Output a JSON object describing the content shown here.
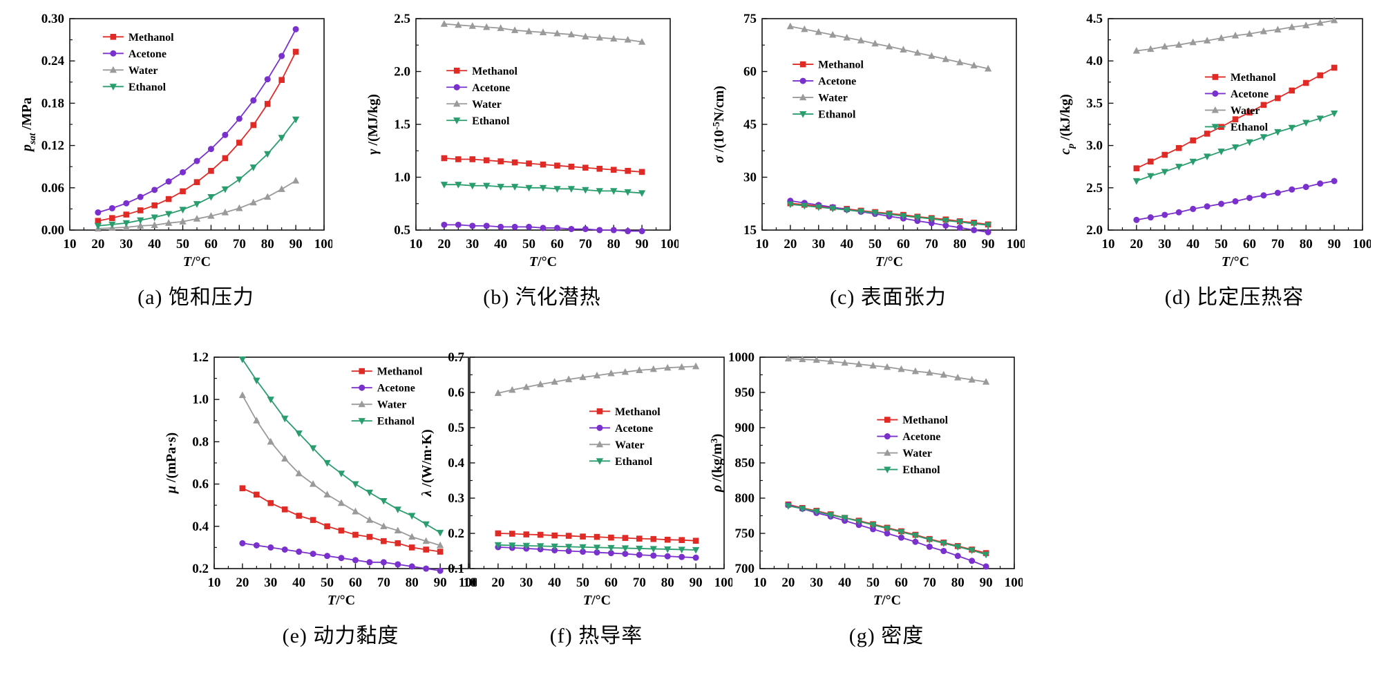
{
  "figure_title": "",
  "xlabel": "T/°C",
  "xlabel_parts": [
    {
      "t": "T",
      "i": 1
    },
    {
      "t": "/°C"
    }
  ],
  "legend_labels": [
    "Methanol",
    "Acetone",
    "Water",
    "Ethanol"
  ],
  "colors": {
    "methanol": "#df2a26",
    "acetone": "#7a30cc",
    "water": "#9a9a9a",
    "ethanol": "#2a9d6e",
    "axis": "#111111"
  },
  "chart_data": [
    {
      "id": "a",
      "type": "line",
      "caption": "(a) 饱和压力",
      "ylabel": "p_sat/MPa",
      "ylabel_parts": [
        {
          "t": "p",
          "i": 1
        },
        {
          "t": "sat",
          "i": 1,
          "sub": 1
        },
        {
          "t": " /MPa"
        }
      ],
      "xlim": [
        10,
        100
      ],
      "xticks": [
        10,
        20,
        30,
        40,
        50,
        60,
        70,
        80,
        90,
        100
      ],
      "ylim": [
        0.0,
        0.3
      ],
      "yticks": [
        0.0,
        0.06,
        0.12,
        0.18,
        0.24,
        0.3
      ],
      "ytick_decimals": 2,
      "x": [
        20,
        25,
        30,
        35,
        40,
        45,
        50,
        55,
        60,
        65,
        70,
        75,
        80,
        85,
        90
      ],
      "legend": {
        "fx": 0.13,
        "fy": 0.05
      },
      "series": [
        {
          "name": "Methanol",
          "color": "#df2a26",
          "marker": "square",
          "values": [
            0.013,
            0.017,
            0.022,
            0.028,
            0.035,
            0.044,
            0.055,
            0.068,
            0.084,
            0.102,
            0.124,
            0.149,
            0.179,
            0.213,
            0.253
          ]
        },
        {
          "name": "Acetone",
          "color": "#7a30cc",
          "marker": "circle",
          "values": [
            0.025,
            0.031,
            0.038,
            0.047,
            0.057,
            0.069,
            0.082,
            0.098,
            0.115,
            0.135,
            0.158,
            0.184,
            0.214,
            0.247,
            0.285
          ]
        },
        {
          "name": "Water",
          "color": "#9a9a9a",
          "marker": "triangle-up",
          "values": [
            0.002,
            0.003,
            0.004,
            0.006,
            0.007,
            0.01,
            0.012,
            0.016,
            0.02,
            0.025,
            0.031,
            0.039,
            0.047,
            0.058,
            0.07
          ]
        },
        {
          "name": "Ethanol",
          "color": "#2a9d6e",
          "marker": "triangle-down",
          "values": [
            0.006,
            0.008,
            0.01,
            0.014,
            0.018,
            0.023,
            0.029,
            0.037,
            0.047,
            0.058,
            0.072,
            0.089,
            0.108,
            0.131,
            0.157
          ]
        }
      ]
    },
    {
      "id": "b",
      "type": "line",
      "caption": "(b) 汽化潜热",
      "ylabel": "γ/(MJ/kg)",
      "ylabel_parts": [
        {
          "t": "γ",
          "i": 1
        },
        {
          "t": " /(MJ/kg)"
        }
      ],
      "xlim": [
        10,
        100
      ],
      "xticks": [
        10,
        20,
        30,
        40,
        50,
        60,
        70,
        80,
        90,
        100
      ],
      "ylim": [
        0.5,
        2.5
      ],
      "yticks": [
        0.5,
        1.0,
        1.5,
        2.0,
        2.5
      ],
      "ytick_decimals": 1,
      "x": [
        20,
        25,
        30,
        35,
        40,
        45,
        50,
        55,
        60,
        65,
        70,
        75,
        80,
        85,
        90
      ],
      "legend": {
        "fx": 0.12,
        "fy": 0.21
      },
      "series": [
        {
          "name": "Methanol",
          "color": "#df2a26",
          "marker": "square",
          "values": [
            1.18,
            1.17,
            1.17,
            1.16,
            1.15,
            1.14,
            1.13,
            1.12,
            1.11,
            1.1,
            1.09,
            1.08,
            1.07,
            1.06,
            1.05
          ]
        },
        {
          "name": "Acetone",
          "color": "#7a30cc",
          "marker": "circle",
          "values": [
            0.55,
            0.55,
            0.54,
            0.54,
            0.53,
            0.53,
            0.53,
            0.52,
            0.52,
            0.51,
            0.51,
            0.5,
            0.5,
            0.49,
            0.49
          ]
        },
        {
          "name": "Water",
          "color": "#9a9a9a",
          "marker": "triangle-up",
          "values": [
            2.45,
            2.44,
            2.43,
            2.42,
            2.41,
            2.39,
            2.38,
            2.37,
            2.36,
            2.35,
            2.33,
            2.32,
            2.31,
            2.3,
            2.28
          ]
        },
        {
          "name": "Ethanol",
          "color": "#2a9d6e",
          "marker": "triangle-down",
          "values": [
            0.93,
            0.93,
            0.92,
            0.92,
            0.91,
            0.91,
            0.9,
            0.9,
            0.89,
            0.89,
            0.88,
            0.87,
            0.87,
            0.86,
            0.85
          ]
        }
      ]
    },
    {
      "id": "c",
      "type": "line",
      "caption": "(c) 表面张力",
      "ylabel": "σ/(10⁻⁵N/cm)",
      "ylabel_parts": [
        {
          "t": "σ",
          "i": 1
        },
        {
          "t": " /(10"
        },
        {
          "t": "-5",
          "sup": 1
        },
        {
          "t": "N/cm)"
        }
      ],
      "xlim": [
        10,
        100
      ],
      "xticks": [
        10,
        20,
        30,
        40,
        50,
        60,
        70,
        80,
        90,
        100
      ],
      "ylim": [
        15,
        75
      ],
      "yticks": [
        15,
        30,
        45,
        60,
        75
      ],
      "ytick_decimals": 0,
      "x": [
        20,
        25,
        30,
        35,
        40,
        45,
        50,
        55,
        60,
        65,
        70,
        75,
        80,
        85,
        90
      ],
      "legend": {
        "fx": 0.12,
        "fy": 0.18
      },
      "series": [
        {
          "name": "Methanol",
          "color": "#df2a26",
          "marker": "square",
          "values": [
            22.6,
            22.2,
            21.8,
            21.4,
            21.0,
            20.5,
            20.1,
            19.7,
            19.3,
            18.8,
            18.4,
            18.0,
            17.5,
            17.1,
            16.6
          ]
        },
        {
          "name": "Acetone",
          "color": "#7a30cc",
          "marker": "circle",
          "values": [
            23.3,
            22.7,
            22.1,
            21.5,
            20.8,
            20.2,
            19.6,
            18.9,
            18.3,
            17.6,
            17.0,
            16.3,
            15.7,
            15.0,
            14.4
          ]
        },
        {
          "name": "Water",
          "color": "#9a9a9a",
          "marker": "triangle-up",
          "values": [
            72.8,
            72.0,
            71.2,
            70.4,
            69.6,
            68.8,
            67.9,
            67.1,
            66.2,
            65.3,
            64.4,
            63.5,
            62.6,
            61.7,
            60.8
          ]
        },
        {
          "name": "Ethanol",
          "color": "#2a9d6e",
          "marker": "triangle-down",
          "values": [
            22.3,
            21.9,
            21.5,
            21.1,
            20.7,
            20.3,
            19.9,
            19.5,
            19.0,
            18.6,
            18.2,
            17.7,
            17.3,
            16.8,
            16.4
          ]
        }
      ]
    },
    {
      "id": "d",
      "type": "line",
      "caption": "(d) 比定压热容",
      "ylabel": "c_p/(kJ/kg)",
      "ylabel_parts": [
        {
          "t": "c",
          "i": 1
        },
        {
          "t": "p",
          "i": 1,
          "sub": 1
        },
        {
          "t": " /(kJ/kg)"
        }
      ],
      "xlim": [
        10,
        100
      ],
      "xticks": [
        10,
        20,
        30,
        40,
        50,
        60,
        70,
        80,
        90,
        100
      ],
      "ylim": [
        2.0,
        4.5
      ],
      "yticks": [
        2.0,
        2.5,
        3.0,
        3.5,
        4.0,
        4.5
      ],
      "ytick_decimals": 1,
      "x": [
        20,
        25,
        30,
        35,
        40,
        45,
        50,
        55,
        60,
        65,
        70,
        75,
        80,
        85,
        90
      ],
      "legend": {
        "fx": 0.38,
        "fy": 0.24
      },
      "series": [
        {
          "name": "Methanol",
          "color": "#df2a26",
          "marker": "square",
          "values": [
            2.73,
            2.81,
            2.89,
            2.97,
            3.06,
            3.14,
            3.22,
            3.31,
            3.39,
            3.48,
            3.56,
            3.65,
            3.74,
            3.83,
            3.92
          ]
        },
        {
          "name": "Acetone",
          "color": "#7a30cc",
          "marker": "circle",
          "values": [
            2.12,
            2.15,
            2.18,
            2.21,
            2.25,
            2.28,
            2.31,
            2.34,
            2.38,
            2.41,
            2.44,
            2.48,
            2.51,
            2.55,
            2.58
          ]
        },
        {
          "name": "Water",
          "color": "#9a9a9a",
          "marker": "triangle-up",
          "values": [
            4.12,
            4.14,
            4.17,
            4.19,
            4.22,
            4.24,
            4.27,
            4.3,
            4.32,
            4.35,
            4.37,
            4.4,
            4.42,
            4.45,
            4.48
          ]
        },
        {
          "name": "Ethanol",
          "color": "#2a9d6e",
          "marker": "triangle-down",
          "values": [
            2.58,
            2.64,
            2.69,
            2.75,
            2.81,
            2.87,
            2.93,
            2.98,
            3.04,
            3.1,
            3.16,
            3.21,
            3.27,
            3.32,
            3.38
          ]
        }
      ]
    },
    {
      "id": "e",
      "type": "line",
      "caption": "(e) 动力黏度",
      "ylabel": "μ/(mPa·s)",
      "ylabel_parts": [
        {
          "t": "μ",
          "i": 1
        },
        {
          "t": " /(mPa·s)"
        }
      ],
      "xlim": [
        10,
        100
      ],
      "xticks": [
        10,
        20,
        30,
        40,
        50,
        60,
        70,
        80,
        90,
        100
      ],
      "ylim": [
        0.2,
        1.2
      ],
      "yticks": [
        0.2,
        0.4,
        0.6,
        0.8,
        1.0,
        1.2
      ],
      "ytick_decimals": 1,
      "x": [
        20,
        25,
        30,
        35,
        40,
        45,
        50,
        55,
        60,
        65,
        70,
        75,
        80,
        85,
        90
      ],
      "legend": {
        "fx": 0.54,
        "fy": 0.03
      },
      "series": [
        {
          "name": "Methanol",
          "color": "#df2a26",
          "marker": "square",
          "values": [
            0.58,
            0.55,
            0.51,
            0.48,
            0.45,
            0.43,
            0.4,
            0.38,
            0.36,
            0.35,
            0.33,
            0.32,
            0.3,
            0.29,
            0.28
          ]
        },
        {
          "name": "Acetone",
          "color": "#7a30cc",
          "marker": "circle",
          "values": [
            0.32,
            0.31,
            0.3,
            0.29,
            0.28,
            0.27,
            0.26,
            0.25,
            0.24,
            0.23,
            0.23,
            0.22,
            0.21,
            0.2,
            0.19
          ]
        },
        {
          "name": "Water",
          "color": "#9a9a9a",
          "marker": "triangle-up",
          "values": [
            1.02,
            0.9,
            0.8,
            0.72,
            0.65,
            0.6,
            0.55,
            0.51,
            0.47,
            0.43,
            0.4,
            0.38,
            0.35,
            0.33,
            0.31
          ]
        },
        {
          "name": "Ethanol",
          "color": "#2a9d6e",
          "marker": "triangle-down",
          "values": [
            1.19,
            1.09,
            1.0,
            0.91,
            0.84,
            0.77,
            0.7,
            0.65,
            0.6,
            0.56,
            0.52,
            0.48,
            0.45,
            0.41,
            0.37
          ]
        }
      ]
    },
    {
      "id": "f",
      "type": "line",
      "caption": "(f) 热导率",
      "ylabel": "λ/(W/m·K)",
      "ylabel_parts": [
        {
          "t": "λ",
          "i": 1
        },
        {
          "t": " /(W/m·K)"
        }
      ],
      "xlim": [
        10,
        100
      ],
      "xticks": [
        10,
        20,
        30,
        40,
        50,
        60,
        70,
        80,
        90,
        100
      ],
      "ylim": [
        0.1,
        0.7
      ],
      "yticks": [
        0.1,
        0.2,
        0.3,
        0.4,
        0.5,
        0.6,
        0.7
      ],
      "ytick_decimals": 1,
      "x": [
        20,
        25,
        30,
        35,
        40,
        45,
        50,
        55,
        60,
        65,
        70,
        75,
        80,
        85,
        90
      ],
      "legend": {
        "fx": 0.47,
        "fy": 0.22
      },
      "series": [
        {
          "name": "Methanol",
          "color": "#df2a26",
          "marker": "square",
          "values": [
            0.2,
            0.199,
            0.197,
            0.196,
            0.194,
            0.193,
            0.191,
            0.19,
            0.188,
            0.187,
            0.185,
            0.184,
            0.182,
            0.181,
            0.179
          ]
        },
        {
          "name": "Acetone",
          "color": "#7a30cc",
          "marker": "circle",
          "values": [
            0.161,
            0.159,
            0.157,
            0.155,
            0.152,
            0.15,
            0.148,
            0.146,
            0.144,
            0.142,
            0.139,
            0.137,
            0.135,
            0.133,
            0.131
          ]
        },
        {
          "name": "Water",
          "color": "#9a9a9a",
          "marker": "triangle-up",
          "values": [
            0.598,
            0.607,
            0.615,
            0.623,
            0.63,
            0.637,
            0.643,
            0.648,
            0.654,
            0.658,
            0.663,
            0.666,
            0.67,
            0.672,
            0.674
          ]
        },
        {
          "name": "Ethanol",
          "color": "#2a9d6e",
          "marker": "triangle-down",
          "values": [
            0.167,
            0.166,
            0.165,
            0.164,
            0.163,
            0.162,
            0.161,
            0.16,
            0.159,
            0.158,
            0.157,
            0.156,
            0.155,
            0.154,
            0.153
          ]
        }
      ]
    },
    {
      "id": "g",
      "type": "line",
      "caption": "(g) 密度",
      "ylabel": "ρ/(kg/m³)",
      "ylabel_parts": [
        {
          "t": "ρ",
          "i": 1
        },
        {
          "t": " /(kg/m"
        },
        {
          "t": "3",
          "sup": 1
        },
        {
          "t": ")"
        }
      ],
      "xlim": [
        10,
        100
      ],
      "xticks": [
        10,
        20,
        30,
        40,
        50,
        60,
        70,
        80,
        90,
        100
      ],
      "ylim": [
        700,
        1000
      ],
      "yticks": [
        700,
        750,
        800,
        850,
        900,
        950,
        1000
      ],
      "ytick_decimals": 0,
      "x": [
        20,
        25,
        30,
        35,
        40,
        45,
        50,
        55,
        60,
        65,
        70,
        75,
        80,
        85,
        90
      ],
      "legend": {
        "fx": 0.46,
        "fy": 0.26
      },
      "series": [
        {
          "name": "Methanol",
          "color": "#df2a26",
          "marker": "square",
          "values": [
            791,
            786,
            782,
            777,
            772,
            768,
            763,
            758,
            753,
            748,
            742,
            737,
            732,
            727,
            722
          ]
        },
        {
          "name": "Acetone",
          "color": "#7a30cc",
          "marker": "circle",
          "values": [
            790,
            785,
            779,
            774,
            768,
            762,
            756,
            750,
            744,
            738,
            731,
            725,
            718,
            711,
            703
          ]
        },
        {
          "name": "Water",
          "color": "#9a9a9a",
          "marker": "triangle-up",
          "values": [
            998,
            997,
            996,
            994,
            992,
            990,
            988,
            986,
            983,
            980,
            978,
            975,
            971,
            968,
            965
          ]
        },
        {
          "name": "Ethanol",
          "color": "#2a9d6e",
          "marker": "triangle-down",
          "values": [
            789,
            785,
            781,
            776,
            772,
            767,
            762,
            757,
            752,
            747,
            741,
            736,
            731,
            726,
            720
          ]
        }
      ]
    }
  ]
}
